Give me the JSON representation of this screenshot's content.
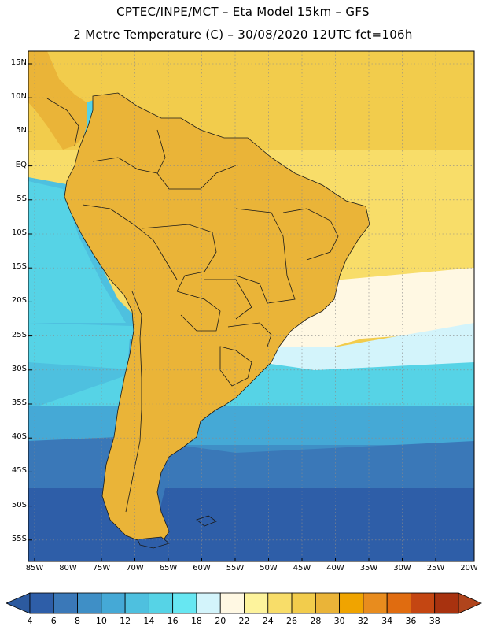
{
  "header": {
    "line1": "CPTEC/INPE/MCT –  Eta Model 15km – GFS",
    "line2": "2 Metre Temperature (C) – 30/08/2020 12UTC fct=106h"
  },
  "map": {
    "latitude_labels": [
      "15N",
      "10N",
      "5N",
      "EQ",
      "5S",
      "10S",
      "15S",
      "20S",
      "25S",
      "30S",
      "35S",
      "40S",
      "45S",
      "50S",
      "55S"
    ],
    "longitude_labels": [
      "85W",
      "80W",
      "75W",
      "70W",
      "65W",
      "60W",
      "55W",
      "50W",
      "45W",
      "40W",
      "35W",
      "30W",
      "25W",
      "20W"
    ]
  },
  "legend": {
    "ticks": [
      "4",
      "6",
      "8",
      "10",
      "12",
      "14",
      "16",
      "18",
      "20",
      "22",
      "24",
      "26",
      "28",
      "30",
      "32",
      "34",
      "36",
      "38"
    ],
    "colors": [
      "#2e5ea8",
      "#3a78b8",
      "#3f8fc6",
      "#45a9d6",
      "#4ec0df",
      "#56d3e6",
      "#67e7f2",
      "#d3f4fb",
      "#fff8e3",
      "#fdf39c",
      "#f8dd69",
      "#f2cc4c",
      "#eab438",
      "#f0a400",
      "#e88c1e",
      "#e06c10",
      "#c44612",
      "#a8320f"
    ],
    "under_color": "#2c5a9f",
    "over_color": "#b0441c"
  }
}
